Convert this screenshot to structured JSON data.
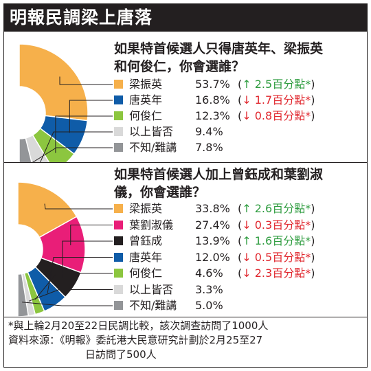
{
  "header": {
    "title": "明報民調梁上唐落"
  },
  "colors": {
    "leung": "#f6b04b",
    "tang": "#0f5ca8",
    "ho": "#8cc63f",
    "neither": "#d9d9d9",
    "unknown": "#939598",
    "ip": "#e91e78",
    "tsang": "#231f20",
    "up": "#2e9c3f",
    "down": "#e0262d"
  },
  "chart_data": [
    {
      "type": "pie",
      "title": "如果特首候選人只得唐英年、梁振英和何俊仁，你會選誰？",
      "unit": "%",
      "slices": [
        {
          "label": "梁振英",
          "value": 53.7,
          "value_text": "53.7%",
          "change_dir": "up",
          "change_text": "2.5百分點",
          "color_key": "leung"
        },
        {
          "label": "唐英年",
          "value": 16.8,
          "value_text": "16.8%",
          "change_dir": "down",
          "change_text": "1.7百分點",
          "color_key": "tang"
        },
        {
          "label": "何俊仁",
          "value": 12.3,
          "value_text": "12.3%",
          "change_dir": "down",
          "change_text": "0.8百分點",
          "color_key": "ho"
        },
        {
          "label": "以上皆否",
          "value": 9.4,
          "value_text": "9.4%",
          "change_dir": "",
          "change_text": "",
          "color_key": "neither"
        },
        {
          "label": "不知/難講",
          "value": 7.8,
          "value_text": "7.8%",
          "change_dir": "",
          "change_text": "",
          "color_key": "unknown"
        }
      ]
    },
    {
      "type": "pie",
      "title": "如果特首候選人加上曾鈺成和葉劉淑儀，你會選誰？",
      "unit": "%",
      "slices": [
        {
          "label": "梁振英",
          "value": 33.8,
          "value_text": "33.8%",
          "change_dir": "up",
          "change_text": "2.6百分點",
          "color_key": "leung"
        },
        {
          "label": "葉劉淑儀",
          "value": 27.4,
          "value_text": "27.4%",
          "change_dir": "down",
          "change_text": "0.3百分點",
          "color_key": "ip"
        },
        {
          "label": "曾鈺成",
          "value": 13.9,
          "value_text": "13.9%",
          "change_dir": "up",
          "change_text": "1.6百分點",
          "color_key": "tsang"
        },
        {
          "label": "唐英年",
          "value": 12.0,
          "value_text": "12.0%",
          "change_dir": "down",
          "change_text": "0.5百分點",
          "color_key": "tang"
        },
        {
          "label": "何俊仁",
          "value": 4.6,
          "value_text": "4.6%",
          "change_dir": "down",
          "change_text": "2.3百分點",
          "color_key": "ho"
        },
        {
          "label": "以上皆否",
          "value": 3.3,
          "value_text": "3.3%",
          "change_dir": "",
          "change_text": "",
          "color_key": "neither"
        },
        {
          "label": "不知/難講",
          "value": 5.0,
          "value_text": "5.0%",
          "change_dir": "",
          "change_text": "",
          "color_key": "unknown"
        }
      ]
    }
  ],
  "panel1": {
    "question_line1": "如果特首候選人只得唐英年、梁振英",
    "question_line2": "和何俊仁，你會選誰？"
  },
  "panel2": {
    "question_line1": "如果特首候選人加上曾鈺成和葉劉淑",
    "question_line2": "儀，你會選誰？"
  },
  "footnote": {
    "line1": "*與上輪2月20至22日民調比較，該次調查訪問了1000人",
    "line2": "資料來源：《明報》委託港大民意研究計劃於2月25至27",
    "line3": "日訪問了500人"
  }
}
